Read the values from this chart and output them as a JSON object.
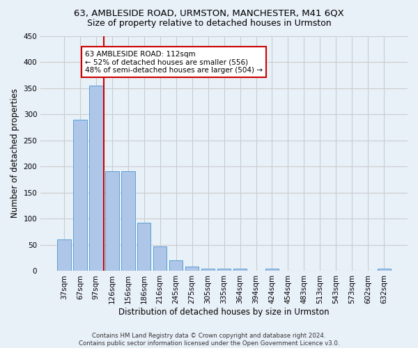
{
  "title": "63, AMBLESIDE ROAD, URMSTON, MANCHESTER, M41 6QX",
  "subtitle": "Size of property relative to detached houses in Urmston",
  "xlabel": "Distribution of detached houses by size in Urmston",
  "ylabel": "Number of detached properties",
  "footnote": "Contains HM Land Registry data © Crown copyright and database right 2024.\nContains public sector information licensed under the Open Government Licence v3.0.",
  "categories": [
    "37sqm",
    "67sqm",
    "97sqm",
    "126sqm",
    "156sqm",
    "186sqm",
    "216sqm",
    "245sqm",
    "275sqm",
    "305sqm",
    "335sqm",
    "364sqm",
    "394sqm",
    "424sqm",
    "454sqm",
    "483sqm",
    "513sqm",
    "543sqm",
    "573sqm",
    "602sqm",
    "632sqm"
  ],
  "values": [
    60,
    290,
    355,
    191,
    191,
    93,
    47,
    20,
    9,
    5,
    5,
    5,
    0,
    5,
    0,
    0,
    0,
    0,
    0,
    0,
    5
  ],
  "bar_color": "#aec6e8",
  "bar_edge_color": "#5a9fd4",
  "vline_x": 2.5,
  "vline_color": "#cc0000",
  "annotation_text": "63 AMBLESIDE ROAD: 112sqm\n← 52% of detached houses are smaller (556)\n48% of semi-detached houses are larger (504) →",
  "annotation_box_color": "#ffffff",
  "annotation_box_edge": "#cc0000",
  "ylim": [
    0,
    450
  ],
  "yticks": [
    0,
    50,
    100,
    150,
    200,
    250,
    300,
    350,
    400,
    450
  ],
  "grid_color": "#cccccc",
  "bg_color": "#e8f0f8",
  "title_fontsize": 9.5,
  "subtitle_fontsize": 9,
  "label_fontsize": 8.5,
  "tick_fontsize": 7.5,
  "annot_fontsize": 7.5
}
